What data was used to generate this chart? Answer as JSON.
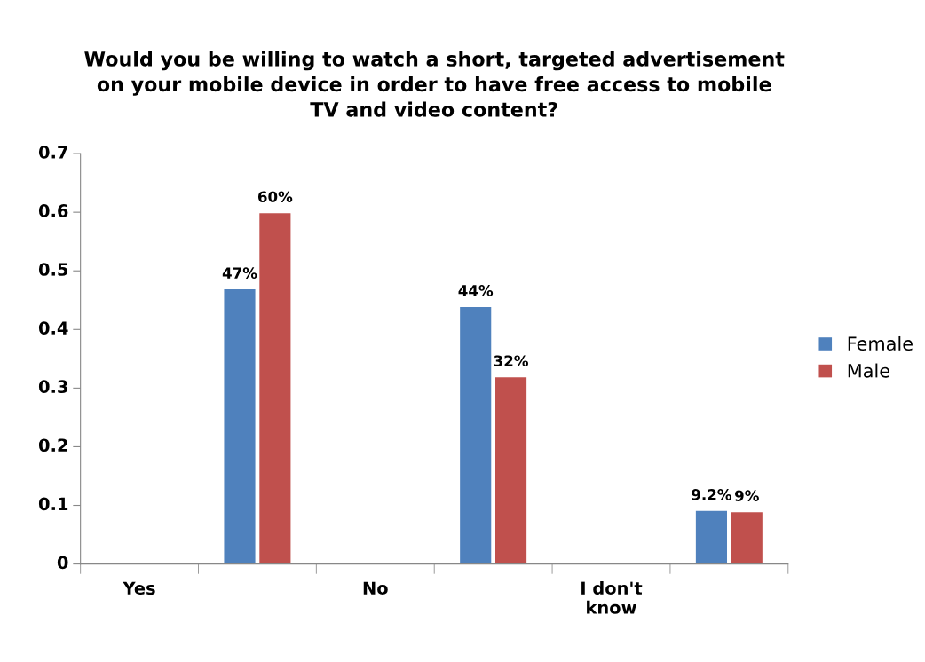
{
  "chart_data": {
    "type": "bar",
    "title": "Would you be willing to watch a short, targeted advertisement\non your mobile device in order to have free access to mobile\nTV and video content?",
    "categories": [
      "Yes",
      null,
      "No",
      null,
      "I don't\nknow",
      null
    ],
    "series": [
      {
        "name": "Female",
        "color": "#4f81bd",
        "values": [
          null,
          0.47,
          null,
          0.44,
          null,
          0.092
        ],
        "value_labels": [
          null,
          "47%",
          null,
          "44%",
          null,
          "9.2%"
        ]
      },
      {
        "name": "Male",
        "color": "#c0504d",
        "values": [
          null,
          0.6,
          null,
          0.32,
          null,
          0.09
        ],
        "value_labels": [
          null,
          "60%",
          null,
          "32%",
          null,
          "9%"
        ]
      }
    ],
    "ylim": [
      0,
      0.7
    ],
    "yticks": [
      0,
      0.1,
      0.2,
      0.3,
      0.4,
      0.5,
      0.6,
      0.7
    ],
    "grid": false,
    "legend": "right"
  }
}
